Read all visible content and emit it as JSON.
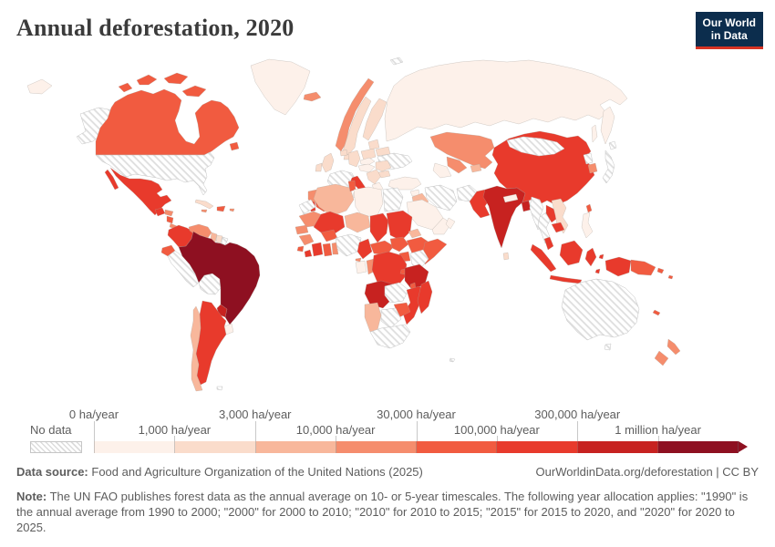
{
  "header": {
    "title": "Annual deforestation, 2020",
    "logo_line1": "Our World",
    "logo_line2": "in Data"
  },
  "legend": {
    "no_data_label": "No data",
    "tick_labels": [
      {
        "text": "0 ha/year",
        "row": "top"
      },
      {
        "text": "1,000 ha/year",
        "row": "bottom"
      },
      {
        "text": "3,000 ha/year",
        "row": "top"
      },
      {
        "text": "10,000 ha/year",
        "row": "bottom"
      },
      {
        "text": "30,000 ha/year",
        "row": "top"
      },
      {
        "text": "100,000 ha/year",
        "row": "bottom"
      },
      {
        "text": "300,000 ha/year",
        "row": "top"
      },
      {
        "text": "1 million ha/year",
        "row": "bottom"
      }
    ]
  },
  "footer": {
    "data_source_label": "Data source:",
    "data_source_text": "Food and Agriculture Organization of the United Nations (2025)",
    "link_text": "OurWorldinData.org/deforestation | CC BY",
    "note_label": "Note:",
    "note_text": "The UN FAO publishes forest data as the annual average on 10- or 5-year timescales. The following year allocation applies: \"1990\" is the annual average from 1990 to 2000; \"2000\" for 2000 to 2010; \"2010\" for 2010 to 2015; \"2015\" for 2015 to 2020, and \"2020\" for 2020 to 2025."
  },
  "colors": {
    "title": "#3b3b3b",
    "footer_text": "#5d5d5d",
    "tick": "#c8c8c8",
    "logo_bg": "#0c2d4d",
    "logo_stripe": "#d63324"
  },
  "chart_data": {
    "type": "choropleth-map",
    "title": "Annual deforestation, 2020",
    "unit": "ha/year",
    "legend_position": "bottom",
    "no_data": "hatched",
    "bin_edges": [
      "0",
      "1,000",
      "3,000",
      "10,000",
      "30,000",
      "100,000",
      "300,000",
      "1 million"
    ],
    "colors": [
      "#fdf1ea",
      "#fadccb",
      "#f8b79b",
      "#f58d6d",
      "#f15b40",
      "#e83a2c",
      "#c72220",
      "#8e1021"
    ],
    "regions": {
      "alaska": 0,
      "canada": 5,
      "canada-island-1": 5,
      "canada-island-2": 5,
      "canada-island-3": 5,
      "canada-island-4": 5,
      "newfoundland": 5,
      "greenland": 1,
      "united-states": 0,
      "mexico": 6,
      "baja-california": 6,
      "guatemala": 6,
      "honduras": 4,
      "nicaragua": 5,
      "costa-rica-panama": 4,
      "cuba": 2,
      "hispaniola": 5,
      "jamaica": 4,
      "puerto-rico": 4,
      "colombia": 6,
      "venezuela": 4,
      "guyana": 3,
      "suriname": 2,
      "french-guiana": 0,
      "ecuador": 5,
      "peru": 0,
      "bolivia": 0,
      "brazil": 8,
      "paraguay": 7,
      "uruguay": 1,
      "argentina": 6,
      "chile": 3,
      "falkland-islands": 0,
      "chukotka-west": 1,
      "iceland": 4,
      "svalbard": 0,
      "norway": 4,
      "sweden": 2,
      "finland": 2,
      "denmark": 2,
      "baltics": 2,
      "belarus": 2,
      "ukraine": 0,
      "poland": 2,
      "germany": 2,
      "benelux": 2,
      "united-kingdom": 2,
      "ireland": 2,
      "france": 0,
      "spain": 5,
      "portugal": 6,
      "italy": 6,
      "sicily": 6,
      "sardinia": 1,
      "czechia-slovakia": 1,
      "austria-hungary": 1,
      "balkans": 2,
      "greece": 1,
      "romania": 2,
      "bulgaria": 2,
      "russia": 1,
      "kamchatka": 1,
      "sakhalin": 1,
      "turkey": 1,
      "syria": 1,
      "iraq": 3,
      "iran": 0,
      "afghanistan": 0,
      "pakistan": 6,
      "saudi-arabia": 1,
      "yemen": 1,
      "oman": 1,
      "kazakhstan": 4,
      "uzbekistan": 4,
      "turkmenistan": 1,
      "kyrgyzstan-tajikistan": 3,
      "india": 7,
      "nepal": 1,
      "sri-lanka": 2,
      "bangladesh": 7,
      "china": 6,
      "mongolia": 0,
      "north-korea": 0,
      "south-korea": 4,
      "japan": 0,
      "hokkaido": 0,
      "taiwan": 5,
      "myanmar": 0,
      "thailand": 0,
      "laos": 6,
      "vietnam": 2,
      "cambodia": 6,
      "malay-peninsula": 6,
      "philippines": 1,
      "sumatra": 6,
      "java": 6,
      "borneo": 6,
      "sulawesi": 6,
      "moluccas-1": 6,
      "moluccas-2": 6,
      "timor": 5,
      "west-papua": 6,
      "papua-new-guinea": 5,
      "new-britain": 5,
      "solomon-islands": 5,
      "new-caledonia": 5,
      "australia": 0,
      "tasmania": 0,
      "new-zealand-north": 4,
      "new-zealand-south": 4,
      "morocco": 4,
      "western-sahara": 0,
      "algeria": 3,
      "tunisia": 5,
      "libya": 1,
      "egypt": 0,
      "mauritania": 4,
      "senegal": 4,
      "guinea": 4,
      "sierra-leone": 5,
      "liberia": 6,
      "mali": 6,
      "burkina-faso": 5,
      "ivory-coast": 6,
      "ghana": 5,
      "togo-benin": 4,
      "niger": 3,
      "nigeria": 0,
      "chad": 6,
      "sudan": 6,
      "eritrea": 3,
      "ethiopia": 5,
      "somalia": 5,
      "cameroon": 6,
      "central-african-republic": 5,
      "south-sudan": 5,
      "uganda": 5,
      "kenya": 0,
      "equatorial-guinea": 4,
      "gabon": 1,
      "congo": 4,
      "dr-congo": 6,
      "rwanda-burundi": 5,
      "tanzania": 7,
      "angola": 7,
      "zambia": 0,
      "malawi": 5,
      "mozambique": 6,
      "zimbabwe": 5,
      "botswana": 0,
      "namibia": 3,
      "south-africa": 0,
      "madagascar": 6,
      "kerguelen": 0
    }
  }
}
